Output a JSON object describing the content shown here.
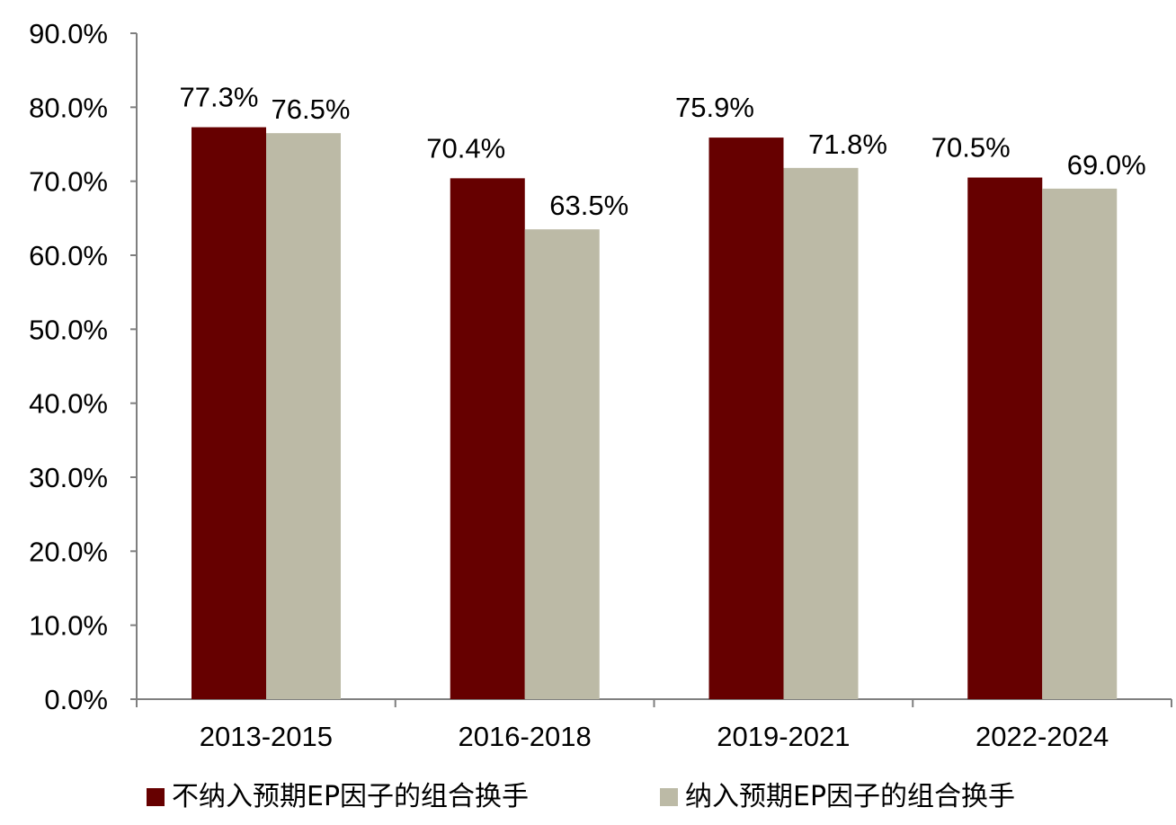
{
  "chart_data": {
    "type": "bar",
    "categories": [
      "2013-2015",
      "2016-2018",
      "2019-2021",
      "2022-2024"
    ],
    "series": [
      {
        "name": "不纳入预期EP因子的组合换手",
        "values": [
          77.3,
          70.4,
          75.9,
          70.5
        ],
        "labels": [
          "77.3%",
          "70.4%",
          "75.9%",
          "70.5%"
        ],
        "color": "#660000"
      },
      {
        "name": "纳入预期EP因子的组合换手",
        "values": [
          76.5,
          63.5,
          71.8,
          69.0
        ],
        "labels": [
          "76.5%",
          "63.5%",
          "71.8%",
          "69.0%"
        ],
        "color": "#BCBAA6"
      }
    ],
    "ylim": [
      0,
      90
    ],
    "yticks": [
      0,
      10,
      20,
      30,
      40,
      50,
      60,
      70,
      80,
      90
    ],
    "ytick_labels": [
      "0.0%",
      "10.0%",
      "20.0%",
      "30.0%",
      "40.0%",
      "50.0%",
      "60.0%",
      "70.0%",
      "80.0%",
      "90.0%"
    ],
    "grid": false,
    "legend_position": "bottom",
    "title": "",
    "xlabel": "",
    "ylabel": ""
  }
}
